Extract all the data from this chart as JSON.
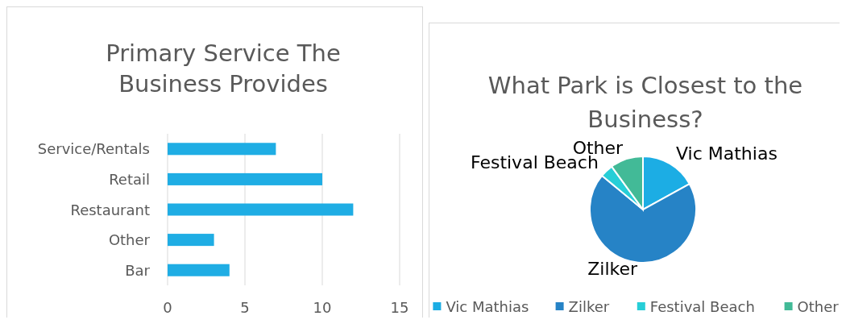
{
  "chart_data": [
    {
      "type": "bar",
      "orientation": "horizontal",
      "title": "Primary Service The Business Provides",
      "categories": [
        "Service/Rentals",
        "Retail",
        "Restaurant",
        "Other",
        "Bar"
      ],
      "values": [
        7,
        10,
        12,
        3,
        4
      ],
      "color": "#1fade4",
      "xlim": [
        0,
        15
      ],
      "xticks": [
        0,
        5,
        10,
        15
      ],
      "grid": "x"
    },
    {
      "type": "pie",
      "title": "What Park is Closest to the Business?",
      "categories": [
        "Vic Mathias",
        "Zilker",
        "Festival Beach",
        "Other"
      ],
      "values": [
        17,
        69,
        4,
        10
      ],
      "colors": [
        "#1cade4",
        "#2683c6",
        "#27ced7",
        "#42ba97"
      ],
      "legend": "bottom"
    }
  ]
}
